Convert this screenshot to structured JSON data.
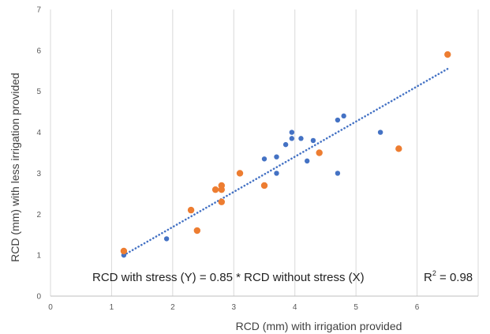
{
  "chart_data": {
    "type": "scatter",
    "title": "",
    "xlabel": "RCD (mm) with irrigation provided",
    "ylabel": "RCD (mm) with less irrigation provided",
    "xlim": [
      0,
      7
    ],
    "ylim": [
      0,
      7
    ],
    "xticks": [
      "0",
      "1",
      "2",
      "3",
      "4",
      "5",
      "6"
    ],
    "yticks": [
      "0",
      "1",
      "2",
      "3",
      "4",
      "5",
      "6",
      "7"
    ],
    "grid": "vertical",
    "legend": "none",
    "series": [
      {
        "color": "#4472C4",
        "points": [
          [
            1.2,
            1.0
          ],
          [
            1.9,
            1.4
          ],
          [
            3.5,
            3.35
          ],
          [
            3.7,
            3.0
          ],
          [
            3.7,
            3.4
          ],
          [
            3.85,
            3.7
          ],
          [
            3.95,
            3.85
          ],
          [
            3.95,
            4.0
          ],
          [
            4.1,
            3.85
          ],
          [
            4.2,
            3.3
          ],
          [
            4.3,
            3.8
          ],
          [
            4.7,
            3.0
          ],
          [
            4.7,
            4.3
          ],
          [
            4.8,
            4.4
          ],
          [
            5.4,
            4.0
          ]
        ]
      },
      {
        "color": "#ED7D31",
        "points": [
          [
            1.2,
            1.1
          ],
          [
            2.3,
            2.1
          ],
          [
            2.4,
            1.6
          ],
          [
            2.7,
            2.6
          ],
          [
            2.8,
            2.3
          ],
          [
            2.8,
            2.6
          ],
          [
            2.8,
            2.7
          ],
          [
            3.1,
            3.0
          ],
          [
            3.5,
            2.7
          ],
          [
            4.4,
            3.5
          ],
          [
            5.7,
            3.6
          ],
          [
            6.5,
            5.9
          ]
        ]
      }
    ],
    "trendline": {
      "style": "dotted",
      "color": "#4472C4",
      "x": [
        1.2,
        6.5
      ],
      "y": [
        1.0,
        5.55
      ]
    },
    "annotation": {
      "equation": "RCD with stress (Y) = 0.85 * RCD without stress (X)",
      "r2_prefix": "R",
      "r2_sup": "2",
      "r2_suffix": " = 0.98"
    }
  }
}
